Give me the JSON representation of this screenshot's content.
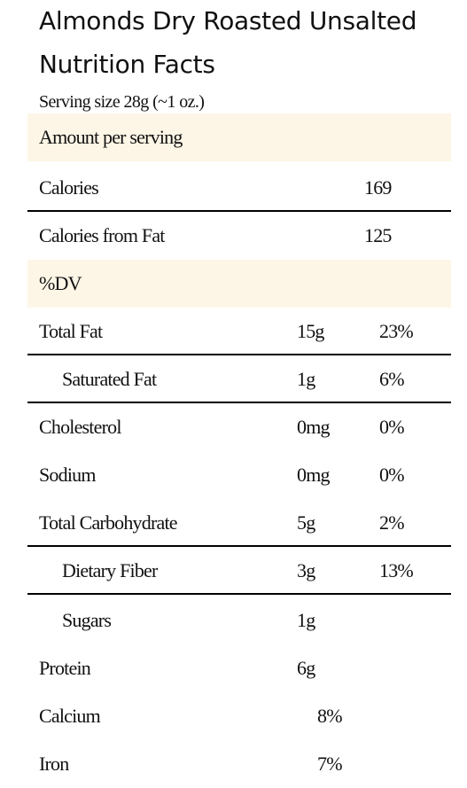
{
  "product_name": "Almonds Dry Roasted Unsalted",
  "heading": "Nutrition Facts",
  "serving_size": "Serving size 28g (~1 oz.)",
  "amount_per_serving": "Amount per serving",
  "calories": {
    "label": "Calories",
    "value": "169"
  },
  "calories_from_fat": {
    "label": "Calories from Fat",
    "value": "125"
  },
  "dv_header": "%DV",
  "nutrients": [
    {
      "label": "Total Fat",
      "amount": "15g",
      "dv": "23%"
    },
    {
      "label": "Saturated Fat",
      "amount": "1g",
      "dv": "6%"
    },
    {
      "label": "Cholesterol",
      "amount": "0mg",
      "dv": "0%"
    },
    {
      "label": "Sodium",
      "amount": "0mg",
      "dv": "0%"
    },
    {
      "label": "Total Carbohydrate",
      "amount": "5g",
      "dv": "2%"
    },
    {
      "label": "Dietary Fiber",
      "amount": "3g",
      "dv": "13%"
    },
    {
      "label": "Sugars",
      "amount": "1g",
      "dv": ""
    },
    {
      "label": "Protein",
      "amount": "6g",
      "dv": ""
    }
  ],
  "minerals": [
    {
      "label": "Calcium",
      "dv": "8%"
    },
    {
      "label": "Iron",
      "dv": "7%"
    }
  ],
  "colors": {
    "tint": "#fdf6e6",
    "rule": "#000000",
    "text": "#111111"
  }
}
